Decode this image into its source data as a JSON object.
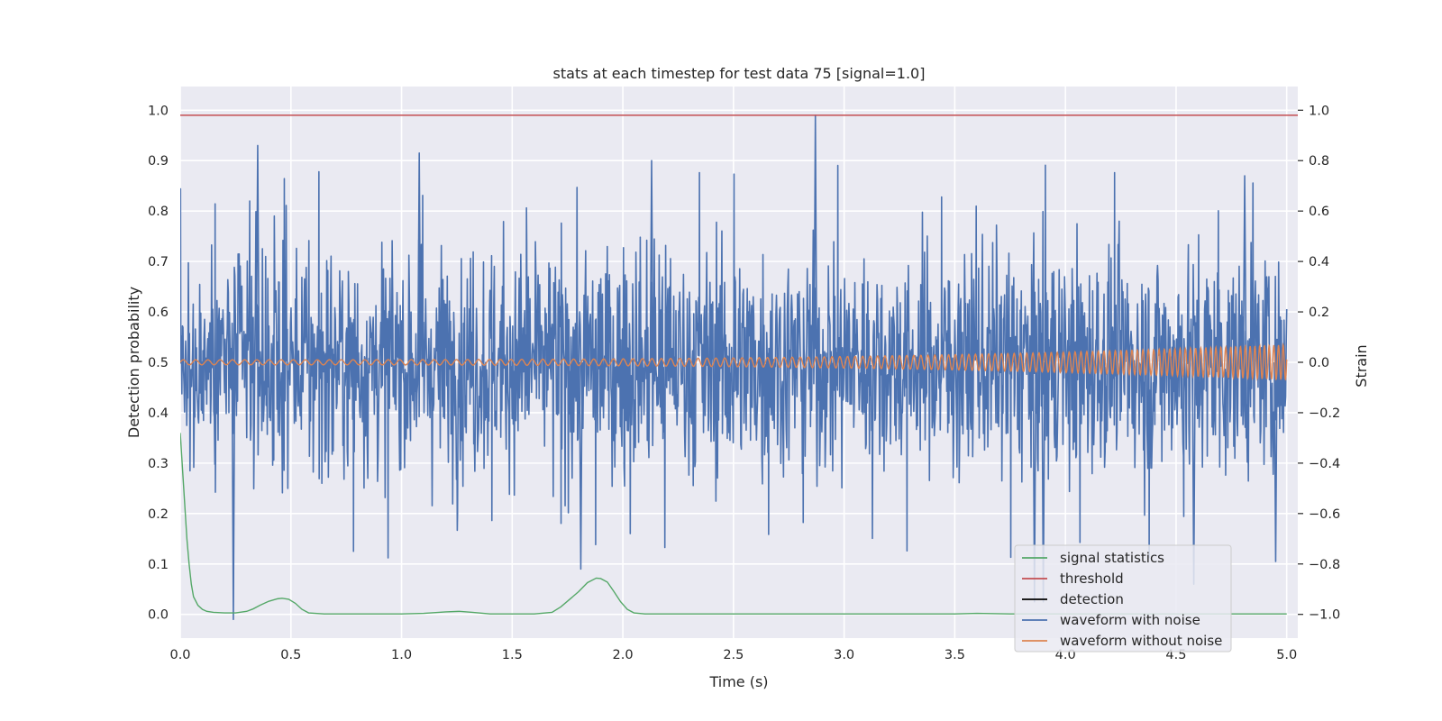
{
  "chart_data": {
    "type": "line",
    "title": "stats at each timestep for test data 75 [signal=1.0]",
    "xlabel": "Time (s)",
    "ylabel": "Detection probability",
    "y2label": "Strain",
    "xlim": [
      0.0,
      5.05
    ],
    "ylim": [
      -0.047,
      1.047
    ],
    "y2lim": [
      -1.094,
      1.094
    ],
    "grid": true,
    "legend_position": "lower-right",
    "x_ticks": [
      {
        "v": 0.0,
        "label": "0.0"
      },
      {
        "v": 0.5,
        "label": "0.5"
      },
      {
        "v": 1.0,
        "label": "1.0"
      },
      {
        "v": 1.5,
        "label": "1.5"
      },
      {
        "v": 2.0,
        "label": "2.0"
      },
      {
        "v": 2.5,
        "label": "2.5"
      },
      {
        "v": 3.0,
        "label": "3.0"
      },
      {
        "v": 3.5,
        "label": "3.5"
      },
      {
        "v": 4.0,
        "label": "4.0"
      },
      {
        "v": 4.5,
        "label": "4.5"
      },
      {
        "v": 5.0,
        "label": "5.0"
      }
    ],
    "y_ticks": [
      {
        "v": 0.0,
        "label": "0.0"
      },
      {
        "v": 0.1,
        "label": "0.1"
      },
      {
        "v": 0.2,
        "label": "0.2"
      },
      {
        "v": 0.3,
        "label": "0.3"
      },
      {
        "v": 0.4,
        "label": "0.4"
      },
      {
        "v": 0.5,
        "label": "0.5"
      },
      {
        "v": 0.6,
        "label": "0.6"
      },
      {
        "v": 0.7,
        "label": "0.7"
      },
      {
        "v": 0.8,
        "label": "0.8"
      },
      {
        "v": 0.9,
        "label": "0.9"
      },
      {
        "v": 1.0,
        "label": "1.0"
      }
    ],
    "y2_ticks": [
      {
        "v": -1.0,
        "label": "−1.0"
      },
      {
        "v": -0.8,
        "label": "−0.8"
      },
      {
        "v": -0.6,
        "label": "−0.6"
      },
      {
        "v": -0.4,
        "label": "−0.4"
      },
      {
        "v": -0.2,
        "label": "−0.2"
      },
      {
        "v": 0.0,
        "label": "0.0"
      },
      {
        "v": 0.2,
        "label": "0.2"
      },
      {
        "v": 0.4,
        "label": "0.4"
      },
      {
        "v": 0.6,
        "label": "0.6"
      },
      {
        "v": 0.8,
        "label": "0.8"
      },
      {
        "v": 1.0,
        "label": "1.0"
      }
    ],
    "threshold": 0.99,
    "series": [
      {
        "name": "signal statistics",
        "color": "#55a868",
        "axis": "left",
        "points": [
          [
            0.0,
            0.36
          ],
          [
            0.02,
            0.22
          ],
          [
            0.03,
            0.15
          ],
          [
            0.04,
            0.1
          ],
          [
            0.05,
            0.06
          ],
          [
            0.06,
            0.035
          ],
          [
            0.08,
            0.018
          ],
          [
            0.1,
            0.01
          ],
          [
            0.12,
            0.006
          ],
          [
            0.15,
            0.004
          ],
          [
            0.2,
            0.003
          ],
          [
            0.25,
            0.003
          ],
          [
            0.3,
            0.006
          ],
          [
            0.33,
            0.011
          ],
          [
            0.36,
            0.018
          ],
          [
            0.4,
            0.026
          ],
          [
            0.44,
            0.031
          ],
          [
            0.46,
            0.032
          ],
          [
            0.49,
            0.03
          ],
          [
            0.52,
            0.022
          ],
          [
            0.55,
            0.01
          ],
          [
            0.58,
            0.003
          ],
          [
            0.65,
            0.001
          ],
          [
            0.8,
            0.001
          ],
          [
            1.0,
            0.001
          ],
          [
            1.1,
            0.002
          ],
          [
            1.2,
            0.005
          ],
          [
            1.26,
            0.006
          ],
          [
            1.32,
            0.004
          ],
          [
            1.4,
            0.001
          ],
          [
            1.6,
            0.001
          ],
          [
            1.68,
            0.004
          ],
          [
            1.72,
            0.015
          ],
          [
            1.76,
            0.03
          ],
          [
            1.8,
            0.045
          ],
          [
            1.84,
            0.063
          ],
          [
            1.88,
            0.072
          ],
          [
            1.9,
            0.071
          ],
          [
            1.93,
            0.064
          ],
          [
            1.96,
            0.045
          ],
          [
            1.99,
            0.025
          ],
          [
            2.02,
            0.01
          ],
          [
            2.05,
            0.003
          ],
          [
            2.1,
            0.001
          ],
          [
            2.5,
            0.001
          ],
          [
            3.0,
            0.001
          ],
          [
            3.5,
            0.001
          ],
          [
            3.6,
            0.002
          ],
          [
            3.75,
            0.001
          ],
          [
            4.0,
            0.001
          ],
          [
            4.5,
            0.001
          ],
          [
            5.0,
            0.001
          ]
        ]
      },
      {
        "name": "threshold",
        "color": "#c44e52",
        "axis": "left"
      },
      {
        "name": "detection",
        "color": "#000000",
        "axis": "left"
      },
      {
        "name": "waveform with noise",
        "color": "#4c72b0",
        "axis": "right",
        "x_start": 0.0,
        "x_end": 5.0,
        "samples": 2048,
        "amplitude_scale": 0.22,
        "extremes": [
          [
            0.24,
            -1.02
          ],
          [
            0.35,
            0.86
          ],
          [
            1.08,
            0.83
          ],
          [
            1.81,
            -0.82
          ],
          [
            2.13,
            0.8
          ],
          [
            2.87,
            0.98
          ],
          [
            3.86,
            -0.95
          ],
          [
            3.9,
            -0.95
          ],
          [
            4.58,
            -0.88
          ],
          [
            4.95,
            -0.79
          ],
          [
            4.81,
            0.74
          ]
        ]
      },
      {
        "name": "waveform without noise",
        "color": "#dd8452",
        "axis": "right",
        "f_start": 18,
        "f_end": 48,
        "amp_start": 0.01,
        "amp_end": 0.07
      }
    ]
  }
}
